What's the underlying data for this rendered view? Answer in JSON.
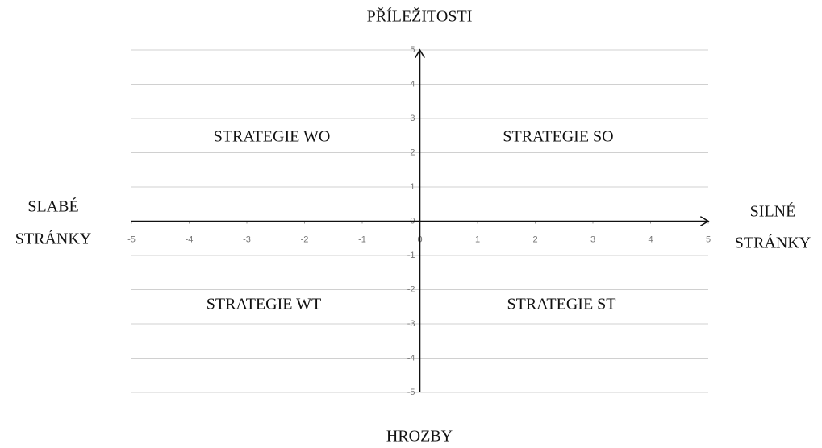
{
  "chart_data": {
    "type": "quadrant",
    "top_label": "PŘÍLEŽITOSTI",
    "bottom_label": "HROZBY",
    "left_label": [
      "SLABÉ",
      "STRÁNKY"
    ],
    "right_label": [
      "SILNÉ",
      "STRÁNKY"
    ],
    "quadrants": [
      "STRATEGIE WO",
      "STRATEGIE SO",
      "STRATEGIE WT",
      "STRATEGIE ST"
    ],
    "xlim": [
      -5,
      5
    ],
    "ylim": [
      -5,
      5
    ],
    "xticks": [
      -5,
      -4,
      -3,
      -2,
      -1,
      0,
      1,
      2,
      3,
      4,
      5
    ],
    "yticks": [
      -5,
      -4,
      -3,
      -2,
      -1,
      0,
      1,
      2,
      3,
      4,
      5
    ],
    "grid": true
  }
}
